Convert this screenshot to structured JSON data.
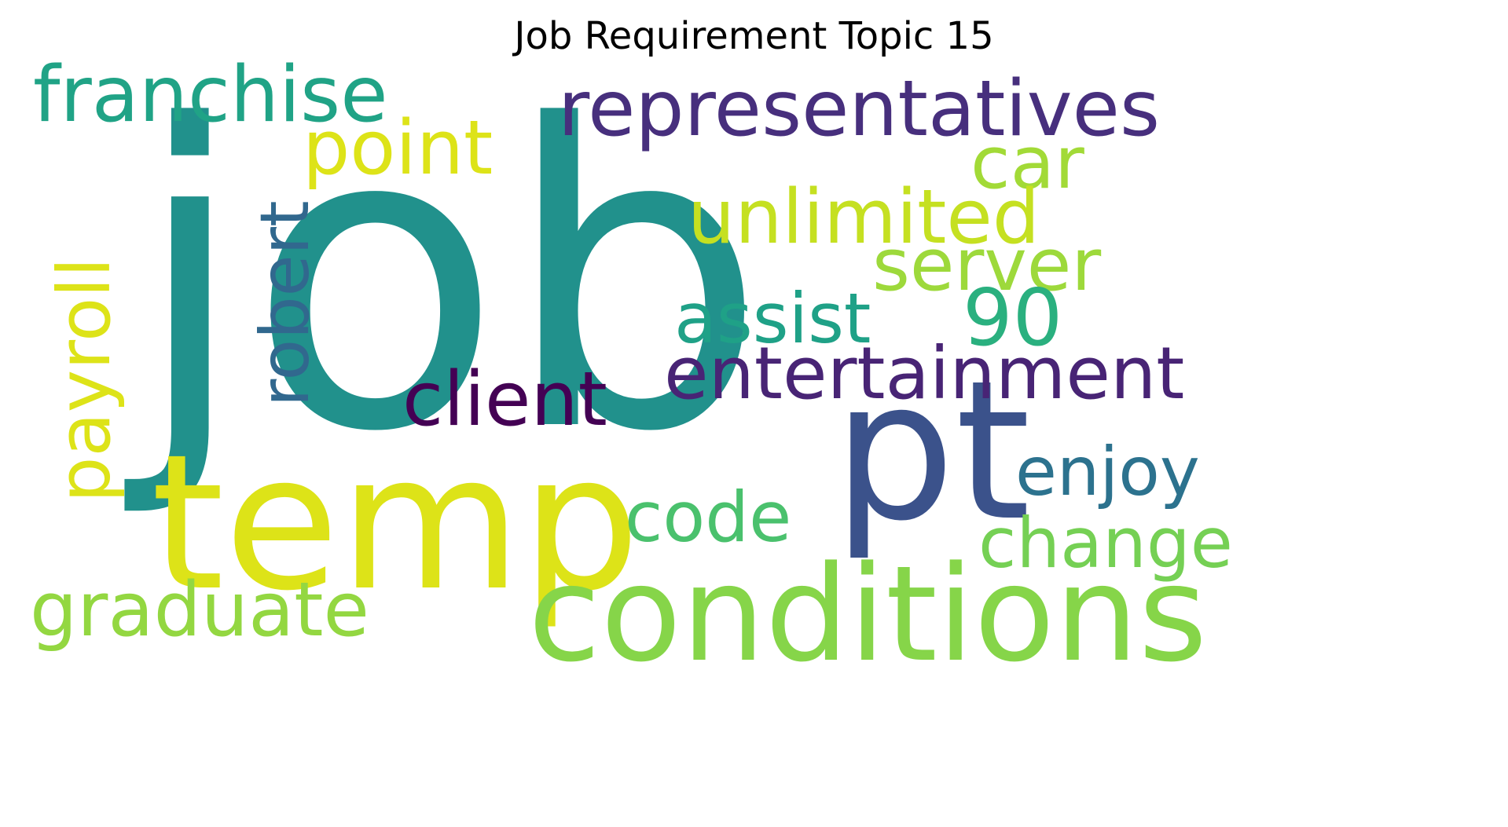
{
  "title": "Job Requirement Topic 15",
  "words": [
    {
      "text": "job",
      "color": "#21918c"
    },
    {
      "text": "temp",
      "color": "#dde318"
    },
    {
      "text": "pt",
      "color": "#3b528b"
    },
    {
      "text": "conditions",
      "color": "#86d549"
    },
    {
      "text": "representatives",
      "color": "#472f7d"
    },
    {
      "text": "franchise",
      "color": "#20a386"
    },
    {
      "text": "point",
      "color": "#dde318"
    },
    {
      "text": "car",
      "color": "#a2da37"
    },
    {
      "text": "unlimited",
      "color": "#c5e021"
    },
    {
      "text": "server",
      "color": "#9dd93b"
    },
    {
      "text": "robert",
      "color": "#31688e"
    },
    {
      "text": "payroll",
      "color": "#dde318"
    },
    {
      "text": "assist",
      "color": "#1fa187"
    },
    {
      "text": "90",
      "color": "#2ab07f"
    },
    {
      "text": "entertainment",
      "color": "#482475"
    },
    {
      "text": "client",
      "color": "#440154"
    },
    {
      "text": "enjoy",
      "color": "#2c728e"
    },
    {
      "text": "code",
      "color": "#4ac16d"
    },
    {
      "text": "change",
      "color": "#75d054"
    },
    {
      "text": "graduate",
      "color": "#93d741"
    }
  ]
}
